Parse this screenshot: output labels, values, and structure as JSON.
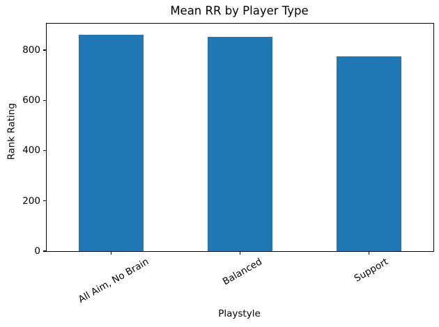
{
  "chart_data": {
    "type": "bar",
    "title": "Mean RR by Player Type",
    "xlabel": "Playstyle",
    "ylabel": "Rank Rating",
    "categories": [
      "All Aim, No Brain",
      "Balanced",
      "Support"
    ],
    "values": [
      861,
      853,
      774
    ],
    "yticks": [
      0,
      200,
      400,
      600,
      800
    ],
    "ylim": [
      0,
      905
    ],
    "bar_color": "#1f77b4",
    "bar_width_fraction": 0.5,
    "x_tick_rotation_deg": 30,
    "grid": false,
    "legend": "none"
  }
}
